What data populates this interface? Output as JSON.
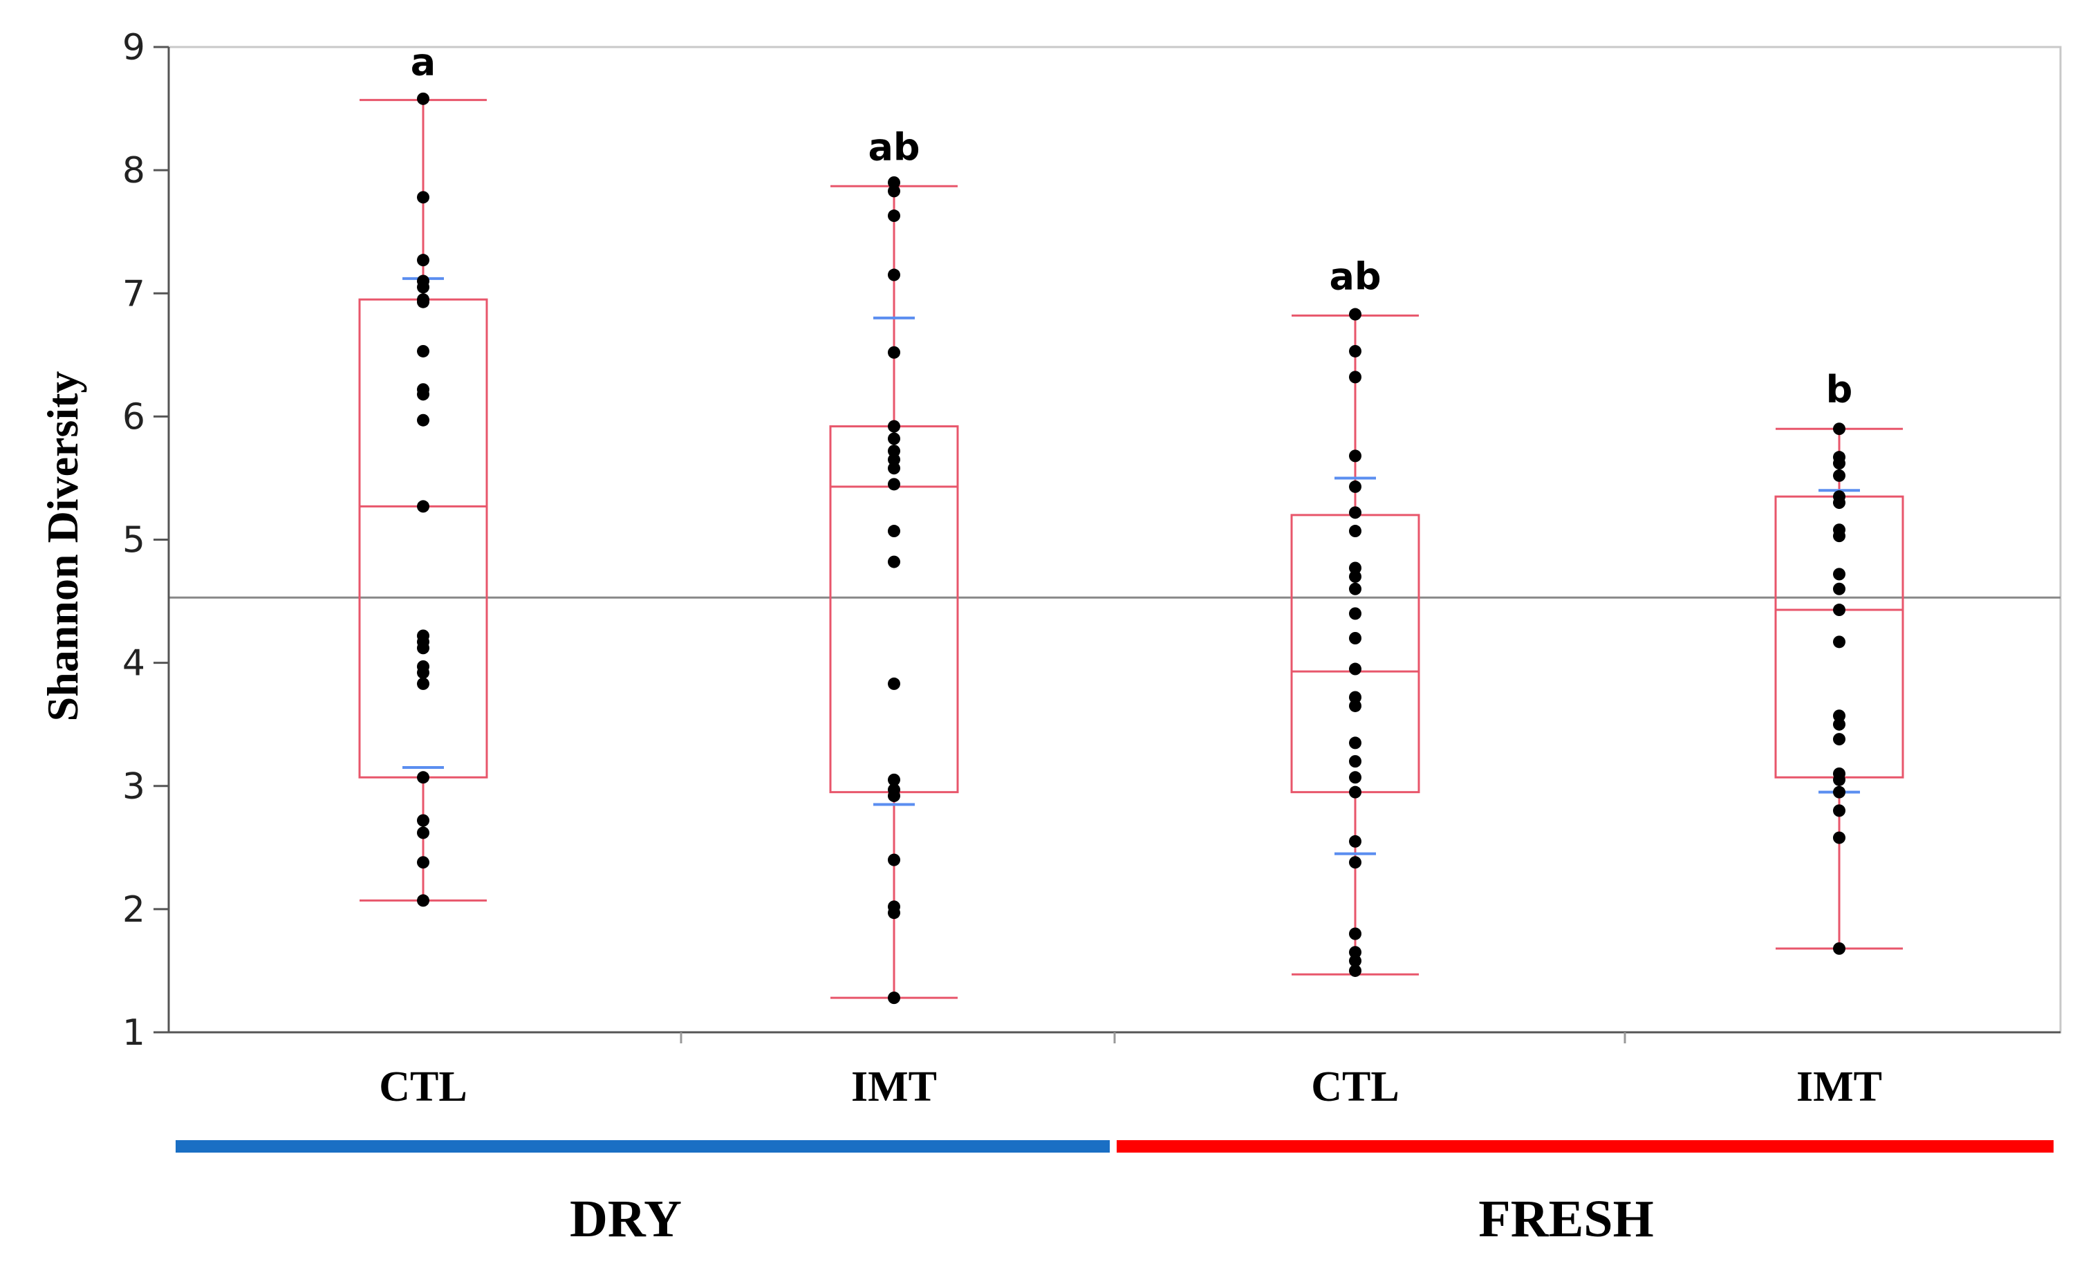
{
  "chart_data": {
    "type": "box",
    "title": "",
    "ylabel": "Shannon Diversity",
    "xlabel": "",
    "ylim": [
      1,
      9
    ],
    "yticks": [
      1,
      2,
      3,
      4,
      5,
      6,
      7,
      8,
      9
    ],
    "grand_mean": 4.53,
    "colors": {
      "box": "#e8566b",
      "ci": "#5b8ef0",
      "point": "#000000",
      "mean_line": "#888888",
      "dry": "#1a6fc4",
      "fresh": "#ff0000"
    },
    "groups": [
      {
        "name": "DRY",
        "color_key": "dry"
      },
      {
        "name": "FRESH",
        "color_key": "fresh"
      }
    ],
    "boxes": [
      {
        "group": "DRY",
        "category": "CTL",
        "letter": "a",
        "min": 2.07,
        "q1": 3.07,
        "median": 5.27,
        "q3": 6.95,
        "max": 8.57,
        "ci_low": 3.15,
        "ci_high": 7.12,
        "points": [
          8.58,
          7.78,
          7.27,
          7.1,
          7.05,
          6.95,
          6.93,
          6.53,
          6.22,
          6.18,
          5.97,
          5.27,
          4.22,
          4.17,
          4.12,
          3.97,
          3.92,
          3.83,
          3.07,
          2.72,
          2.62,
          2.38,
          2.07
        ]
      },
      {
        "group": "DRY",
        "category": "IMT",
        "letter": "ab",
        "min": 1.28,
        "q1": 2.95,
        "median": 5.43,
        "q3": 5.92,
        "max": 7.87,
        "ci_low": 2.85,
        "ci_high": 6.8,
        "points": [
          7.9,
          7.83,
          7.63,
          7.15,
          6.52,
          5.92,
          5.82,
          5.72,
          5.65,
          5.58,
          5.45,
          5.07,
          4.82,
          3.83,
          3.05,
          2.97,
          2.92,
          2.4,
          2.02,
          1.97,
          1.28
        ]
      },
      {
        "group": "FRESH",
        "category": "CTL",
        "letter": "ab",
        "min": 1.47,
        "q1": 2.95,
        "median": 3.93,
        "q3": 5.2,
        "max": 6.82,
        "ci_low": 2.45,
        "ci_high": 5.5,
        "points": [
          6.83,
          6.53,
          6.32,
          5.68,
          5.43,
          5.22,
          5.07,
          4.77,
          4.7,
          4.6,
          4.4,
          4.2,
          3.95,
          3.72,
          3.65,
          3.35,
          3.2,
          3.07,
          2.95,
          2.55,
          2.38,
          1.8,
          1.65,
          1.58,
          1.5
        ]
      },
      {
        "group": "FRESH",
        "category": "IMT",
        "letter": "b",
        "min": 1.68,
        "q1": 3.07,
        "median": 4.43,
        "q3": 5.35,
        "max": 5.9,
        "ci_low": 2.95,
        "ci_high": 5.4,
        "points": [
          5.9,
          5.67,
          5.62,
          5.52,
          5.35,
          5.3,
          5.08,
          5.03,
          4.72,
          4.6,
          4.43,
          4.17,
          3.57,
          3.5,
          3.38,
          3.1,
          3.05,
          2.95,
          2.8,
          2.58,
          1.68
        ]
      }
    ]
  }
}
